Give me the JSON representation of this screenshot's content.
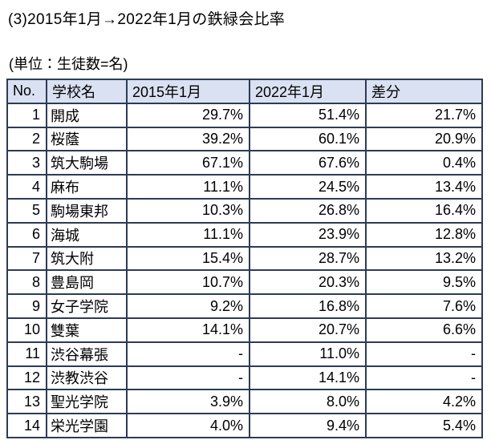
{
  "page": {
    "title": "(3)2015年1月→2022年1月の鉄緑会比率",
    "unit_note": "(単位：生徒数=名)"
  },
  "table": {
    "columns": [
      "No.",
      "学校名",
      "2015年1月",
      "2022年1月",
      "差分"
    ],
    "rows": [
      {
        "no": "1",
        "name": "開成",
        "y2015": "29.7%",
        "y2022": "51.4%",
        "diff": "21.7%"
      },
      {
        "no": "2",
        "name": "桜蔭",
        "y2015": "39.2%",
        "y2022": "60.1%",
        "diff": "20.9%"
      },
      {
        "no": "3",
        "name": "筑大駒場",
        "y2015": "67.1%",
        "y2022": "67.6%",
        "diff": "0.4%"
      },
      {
        "no": "4",
        "name": "麻布",
        "y2015": "11.1%",
        "y2022": "24.5%",
        "diff": "13.4%"
      },
      {
        "no": "5",
        "name": "駒場東邦",
        "y2015": "10.3%",
        "y2022": "26.8%",
        "diff": "16.4%"
      },
      {
        "no": "6",
        "name": "海城",
        "y2015": "11.1%",
        "y2022": "23.9%",
        "diff": "12.8%"
      },
      {
        "no": "7",
        "name": "筑大附",
        "y2015": "15.4%",
        "y2022": "28.7%",
        "diff": "13.2%"
      },
      {
        "no": "8",
        "name": "豊島岡",
        "y2015": "10.7%",
        "y2022": "20.3%",
        "diff": "9.5%"
      },
      {
        "no": "9",
        "name": "女子学院",
        "y2015": "9.2%",
        "y2022": "16.8%",
        "diff": "7.6%"
      },
      {
        "no": "10",
        "name": "雙葉",
        "y2015": "14.1%",
        "y2022": "20.7%",
        "diff": "6.6%"
      },
      {
        "no": "11",
        "name": "渋谷幕張",
        "y2015": "-",
        "y2022": "11.0%",
        "diff": "-"
      },
      {
        "no": "12",
        "name": "渋教渋谷",
        "y2015": "-",
        "y2022": "14.1%",
        "diff": "-"
      },
      {
        "no": "13",
        "name": "聖光学院",
        "y2015": "3.9%",
        "y2022": "8.0%",
        "diff": "4.2%"
      },
      {
        "no": "14",
        "name": "栄光学園",
        "y2015": "4.0%",
        "y2022": "9.4%",
        "diff": "5.4%"
      }
    ]
  },
  "chart_data": {
    "type": "table",
    "title": "(3)2015年1月→2022年1月の鉄緑会比率",
    "unit": "生徒数=名",
    "columns": [
      "No.",
      "学校名",
      "2015年1月",
      "2022年1月",
      "差分"
    ],
    "rows": [
      [
        "1",
        "開成",
        "29.7%",
        "51.4%",
        "21.7%"
      ],
      [
        "2",
        "桜蔭",
        "39.2%",
        "60.1%",
        "20.9%"
      ],
      [
        "3",
        "筑大駒場",
        "67.1%",
        "67.6%",
        "0.4%"
      ],
      [
        "4",
        "麻布",
        "11.1%",
        "24.5%",
        "13.4%"
      ],
      [
        "5",
        "駒場東邦",
        "10.3%",
        "26.8%",
        "16.4%"
      ],
      [
        "6",
        "海城",
        "11.1%",
        "23.9%",
        "12.8%"
      ],
      [
        "7",
        "筑大附",
        "15.4%",
        "28.7%",
        "13.2%"
      ],
      [
        "8",
        "豊島岡",
        "10.7%",
        "20.3%",
        "9.5%"
      ],
      [
        "9",
        "女子学院",
        "9.2%",
        "16.8%",
        "7.6%"
      ],
      [
        "10",
        "雙葉",
        "14.1%",
        "20.7%",
        "6.6%"
      ],
      [
        "11",
        "渋谷幕張",
        "-",
        "11.0%",
        "-"
      ],
      [
        "12",
        "渋教渋谷",
        "-",
        "14.1%",
        "-"
      ],
      [
        "13",
        "聖光学院",
        "3.9%",
        "8.0%",
        "4.2%"
      ],
      [
        "14",
        "栄光学園",
        "4.0%",
        "9.4%",
        "5.4%"
      ]
    ]
  },
  "colors": {
    "header_bg": "#d9e1f2",
    "border": "#2e3b55",
    "text": "#000000",
    "background": "#ffffff"
  }
}
